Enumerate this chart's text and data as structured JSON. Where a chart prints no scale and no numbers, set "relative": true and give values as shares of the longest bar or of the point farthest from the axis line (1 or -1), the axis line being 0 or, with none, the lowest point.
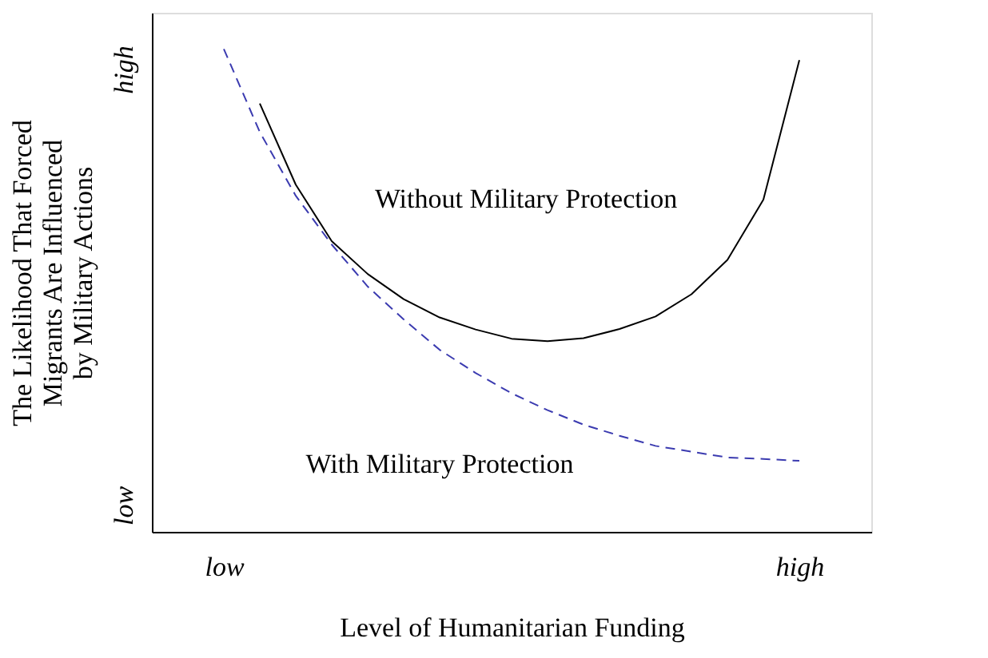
{
  "chart_data": {
    "type": "line",
    "relative": true,
    "xlabel": "Level of Humanitarian Funding",
    "ylabel": "The Likelihood That Forced\nMigrants Are Influenced\nby Military Actions",
    "categories": [
      null,
      null,
      "low",
      null,
      null,
      null,
      null,
      null,
      null,
      null,
      null,
      null,
      null,
      null,
      null,
      null,
      null,
      null,
      "high",
      null,
      null
    ],
    "annotations": [
      "low",
      "high"
    ],
    "grid": false,
    "legend": false,
    "marker": "none",
    "series": [
      {
        "name": "Without Military Protection",
        "color": "#000000",
        "line_style": "solid",
        "values": [
          null,
          null,
          null,
          0.887,
          0.719,
          0.602,
          0.534,
          0.482,
          0.444,
          0.419,
          0.4,
          0.395,
          0.401,
          0.42,
          0.446,
          0.492,
          0.563,
          0.688,
          0.977,
          null,
          null
        ]
      },
      {
        "name": "With Military Protection",
        "color": "#3b3bb0",
        "line_style": "dashed",
        "values": [
          null,
          null,
          1,
          0.828,
          0.696,
          0.595,
          0.508,
          0.44,
          0.377,
          0.329,
          0.287,
          0.252,
          0.222,
          0.199,
          0.178,
          0.166,
          0.154,
          0.151,
          0.147,
          null,
          null
        ]
      }
    ]
  }
}
